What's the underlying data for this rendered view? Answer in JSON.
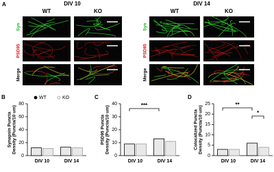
{
  "panel_a": {
    "label": "A",
    "groups": [
      {
        "title": "DIV 10",
        "columns": [
          "WT",
          "KO"
        ]
      },
      {
        "title": "DIV 14",
        "columns": [
          "WT",
          "KO"
        ]
      }
    ],
    "rows": [
      "Syn",
      "PSD95",
      "Merge"
    ]
  },
  "chart_data": [
    {
      "type": "bar",
      "label": "B",
      "ylabel": [
        "Synapsin Puncta",
        "Density (Puncta/10 um)"
      ],
      "categories": [
        "DIV 10",
        "DIV 14"
      ],
      "series": [
        {
          "name": "WT",
          "color": "#000000",
          "values": [
            12,
            13
          ]
        },
        {
          "name": "KO",
          "color": "#9a9a9a",
          "values": [
            11,
            12
          ]
        }
      ],
      "ylim": [
        0,
        80
      ],
      "yticks": [
        0,
        20,
        40,
        60,
        80
      ],
      "legend": "top"
    },
    {
      "type": "bar",
      "label": "C",
      "ylabel": [
        "PSD95 Puncta",
        "Density (Puncta/10 um)"
      ],
      "categories": [
        "DIV 10",
        "DIV 14"
      ],
      "series": [
        {
          "name": "WT",
          "color": "#000000",
          "values": [
            9,
            13
          ]
        },
        {
          "name": "KO",
          "color": "#9a9a9a",
          "values": [
            9,
            11
          ]
        }
      ],
      "ylim": [
        0,
        40
      ],
      "yticks": [
        0,
        10,
        20,
        30,
        40
      ],
      "annotations": [
        "***"
      ]
    },
    {
      "type": "bar",
      "label": "D",
      "ylabel": [
        "Colocalized Puncta",
        "Density (Puncta/10 um)"
      ],
      "categories": [
        "DIV 10",
        "DIV 14"
      ],
      "series": [
        {
          "name": "WT",
          "color": "#000000",
          "values": [
            3,
            6
          ]
        },
        {
          "name": "KO",
          "color": "#9a9a9a",
          "values": [
            3,
            4
          ]
        }
      ],
      "ylim": [
        0,
        25
      ],
      "yticks": [
        0,
        5,
        10,
        15,
        20,
        25
      ],
      "annotations": [
        "**",
        "*"
      ]
    }
  ]
}
